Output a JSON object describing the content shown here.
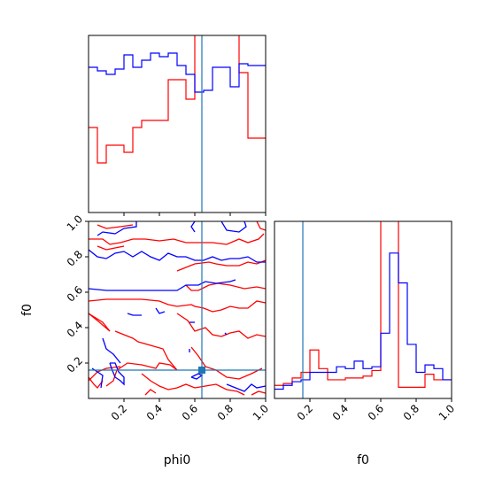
{
  "chart_data": {
    "type": "corner",
    "parameters": [
      "phi0",
      "f0"
    ],
    "xlabels": [
      "phi0",
      "f0"
    ],
    "ylabels": [
      "",
      "f0"
    ],
    "truth": {
      "phi0": 0.64,
      "f0": 0.16
    },
    "ranges": {
      "phi0": [
        0.0,
        1.0
      ],
      "f0": [
        0.0,
        1.0
      ]
    },
    "ticks": {
      "phi0": [
        "0.2",
        "0.4",
        "0.6",
        "0.8",
        "1.0"
      ],
      "f0": [
        "0.2",
        "0.4",
        "0.6",
        "0.8",
        "1.0"
      ],
      "f0_y": [
        "0.2",
        "0.4",
        "0.6",
        "0.8",
        "1.0"
      ]
    },
    "series_colors": {
      "blue": "#0000ff",
      "red": "#ff0000",
      "truth": "#1f77b4"
    },
    "hist_phi0": {
      "bin_edges": [
        0.0,
        0.05,
        0.1,
        0.15,
        0.2,
        0.25,
        0.3,
        0.35,
        0.4,
        0.45,
        0.5,
        0.55,
        0.6,
        0.65,
        0.7,
        0.75,
        0.8,
        0.85,
        0.9,
        0.95,
        1.0
      ],
      "blue": [
        0.82,
        0.8,
        0.78,
        0.81,
        0.89,
        0.82,
        0.86,
        0.9,
        0.88,
        0.9,
        0.83,
        0.78,
        0.68,
        0.69,
        0.82,
        0.82,
        0.71,
        0.84,
        0.83,
        0.83
      ],
      "red": [
        0.48,
        0.28,
        0.38,
        0.38,
        0.34,
        0.48,
        0.52,
        0.52,
        0.52,
        0.75,
        0.75,
        0.64,
        1.1,
        1.1,
        1.1,
        1.1,
        1.1,
        0.79,
        0.42,
        0.42
      ],
      "ymax": 1.0
    },
    "hist_f0": {
      "bin_edges": [
        0.0,
        0.05,
        0.1,
        0.15,
        0.2,
        0.25,
        0.3,
        0.35,
        0.4,
        0.45,
        0.5,
        0.55,
        0.6,
        0.65,
        0.7,
        0.75,
        0.8,
        0.85,
        0.9,
        0.95,
        1.0
      ],
      "blue": [
        0.05,
        0.07,
        0.09,
        0.1,
        0.14,
        0.14,
        0.14,
        0.17,
        0.16,
        0.2,
        0.16,
        0.17,
        0.35,
        0.78,
        0.62,
        0.29,
        0.14,
        0.18,
        0.16,
        0.1
      ],
      "red": [
        0.07,
        0.08,
        0.11,
        0.14,
        0.26,
        0.16,
        0.1,
        0.1,
        0.11,
        0.11,
        0.12,
        0.15,
        1.3,
        1.3,
        0.06,
        0.06,
        0.06,
        0.13,
        0.1,
        0.1
      ],
      "ymax": 0.95
    },
    "contours": {
      "blue": [
        [
          [
            0.27,
            1.0
          ],
          [
            0.27,
            0.97
          ],
          [
            0.2,
            0.96
          ],
          [
            0.15,
            0.93
          ],
          [
            0.08,
            0.94
          ],
          [
            0.05,
            0.92
          ]
        ],
        [
          [
            0.6,
            1.0
          ],
          [
            0.58,
            0.97
          ],
          [
            0.6,
            0.94
          ]
        ],
        [
          [
            0.75,
            1.0
          ],
          [
            0.78,
            0.95
          ],
          [
            0.85,
            0.94
          ],
          [
            0.89,
            0.97
          ],
          [
            0.88,
            1.0
          ]
        ],
        [
          [
            0.0,
            0.84
          ],
          [
            0.05,
            0.8
          ],
          [
            0.1,
            0.79
          ],
          [
            0.15,
            0.82
          ],
          [
            0.2,
            0.83
          ],
          [
            0.25,
            0.8
          ],
          [
            0.3,
            0.83
          ],
          [
            0.35,
            0.8
          ],
          [
            0.4,
            0.78
          ],
          [
            0.45,
            0.82
          ],
          [
            0.5,
            0.8
          ],
          [
            0.55,
            0.8
          ],
          [
            0.6,
            0.78
          ],
          [
            0.65,
            0.78
          ],
          [
            0.7,
            0.8
          ],
          [
            0.75,
            0.78
          ],
          [
            0.8,
            0.79
          ],
          [
            0.85,
            0.79
          ],
          [
            0.9,
            0.8
          ],
          [
            0.95,
            0.77
          ],
          [
            1.0,
            0.77
          ]
        ],
        [
          [
            0.0,
            0.62
          ],
          [
            0.1,
            0.61
          ],
          [
            0.2,
            0.61
          ],
          [
            0.3,
            0.61
          ],
          [
            0.4,
            0.61
          ],
          [
            0.5,
            0.61
          ],
          [
            0.55,
            0.64
          ],
          [
            0.62,
            0.64
          ],
          [
            0.66,
            0.66
          ],
          [
            0.72,
            0.65
          ],
          [
            0.8,
            0.66
          ],
          [
            0.83,
            0.67
          ]
        ],
        [
          [
            0.22,
            0.48
          ],
          [
            0.25,
            0.47
          ],
          [
            0.3,
            0.47
          ]
        ],
        [
          [
            0.38,
            0.51
          ],
          [
            0.4,
            0.48
          ],
          [
            0.43,
            0.49
          ]
        ],
        [
          [
            0.57,
            0.43
          ],
          [
            0.6,
            0.43
          ]
        ],
        [
          [
            0.57,
            0.28
          ],
          [
            0.57,
            0.26
          ]
        ],
        [
          [
            0.77,
            0.37
          ],
          [
            0.78,
            0.36
          ]
        ],
        [
          [
            0.08,
            0.34
          ],
          [
            0.1,
            0.28
          ],
          [
            0.14,
            0.25
          ],
          [
            0.18,
            0.2
          ]
        ],
        [
          [
            0.02,
            0.17
          ],
          [
            0.05,
            0.15
          ],
          [
            0.08,
            0.13
          ],
          [
            0.07,
            0.06
          ]
        ],
        [
          [
            0.12,
            0.2
          ],
          [
            0.15,
            0.2
          ],
          [
            0.17,
            0.15
          ],
          [
            0.2,
            0.12
          ],
          [
            0.2,
            0.08
          ],
          [
            0.18,
            0.1
          ],
          [
            0.15,
            0.12
          ],
          [
            0.13,
            0.17
          ],
          [
            0.12,
            0.2
          ]
        ],
        [
          [
            0.58,
            0.12
          ],
          [
            0.61,
            0.11
          ],
          [
            0.64,
            0.13
          ],
          [
            0.62,
            0.14
          ],
          [
            0.58,
            0.12
          ]
        ],
        [
          [
            0.78,
            0.08
          ],
          [
            0.83,
            0.06
          ],
          [
            0.88,
            0.04
          ],
          [
            0.92,
            0.08
          ],
          [
            0.95,
            0.06
          ],
          [
            1.0,
            0.07
          ]
        ]
      ],
      "red": [
        [
          [
            0.05,
            0.98
          ],
          [
            0.1,
            0.96
          ],
          [
            0.18,
            0.97
          ],
          [
            0.25,
            0.98
          ]
        ],
        [
          [
            0.0,
            0.9
          ],
          [
            0.08,
            0.9
          ],
          [
            0.12,
            0.87
          ],
          [
            0.18,
            0.88
          ],
          [
            0.25,
            0.9
          ],
          [
            0.32,
            0.9
          ],
          [
            0.4,
            0.89
          ],
          [
            0.48,
            0.9
          ],
          [
            0.55,
            0.88
          ],
          [
            0.62,
            0.88
          ],
          [
            0.7,
            0.88
          ],
          [
            0.78,
            0.87
          ],
          [
            0.85,
            0.9
          ],
          [
            0.9,
            0.88
          ],
          [
            0.96,
            0.9
          ],
          [
            0.99,
            0.93
          ]
        ],
        [
          [
            0.05,
            0.86
          ],
          [
            0.1,
            0.84
          ],
          [
            0.15,
            0.85
          ],
          [
            0.2,
            0.86
          ]
        ],
        [
          [
            0.95,
            1.0
          ],
          [
            0.97,
            0.96
          ],
          [
            1.0,
            0.95
          ]
        ],
        [
          [
            0.5,
            0.72
          ],
          [
            0.55,
            0.74
          ],
          [
            0.6,
            0.76
          ],
          [
            0.68,
            0.77
          ],
          [
            0.72,
            0.76
          ],
          [
            0.78,
            0.75
          ],
          [
            0.85,
            0.75
          ],
          [
            0.9,
            0.77
          ],
          [
            0.95,
            0.76
          ],
          [
            1.0,
            0.78
          ]
        ],
        [
          [
            0.55,
            0.64
          ],
          [
            0.58,
            0.61
          ],
          [
            0.62,
            0.61
          ],
          [
            0.68,
            0.64
          ],
          [
            0.73,
            0.65
          ],
          [
            0.8,
            0.64
          ],
          [
            0.88,
            0.62
          ],
          [
            0.95,
            0.63
          ],
          [
            1.0,
            0.62
          ]
        ],
        [
          [
            0.0,
            0.55
          ],
          [
            0.1,
            0.56
          ],
          [
            0.2,
            0.56
          ],
          [
            0.3,
            0.56
          ],
          [
            0.4,
            0.55
          ],
          [
            0.45,
            0.53
          ],
          [
            0.5,
            0.52
          ],
          [
            0.58,
            0.53
          ],
          [
            0.6,
            0.52
          ],
          [
            0.65,
            0.51
          ],
          [
            0.7,
            0.49
          ],
          [
            0.75,
            0.5
          ],
          [
            0.8,
            0.52
          ],
          [
            0.85,
            0.51
          ],
          [
            0.9,
            0.51
          ],
          [
            0.95,
            0.55
          ],
          [
            1.0,
            0.54
          ]
        ],
        [
          [
            0.0,
            0.48
          ],
          [
            0.05,
            0.44
          ],
          [
            0.12,
            0.38
          ],
          [
            0.08,
            0.43
          ],
          [
            0.0,
            0.48
          ]
        ],
        [
          [
            0.15,
            0.38
          ],
          [
            0.2,
            0.36
          ],
          [
            0.25,
            0.34
          ],
          [
            0.28,
            0.32
          ],
          [
            0.35,
            0.3
          ],
          [
            0.42,
            0.28
          ],
          [
            0.45,
            0.22
          ],
          [
            0.5,
            0.16
          ],
          [
            0.46,
            0.19
          ],
          [
            0.4,
            0.2
          ],
          [
            0.38,
            0.17
          ],
          [
            0.3,
            0.19
          ],
          [
            0.22,
            0.2
          ],
          [
            0.16,
            0.16
          ],
          [
            0.14,
            0.1
          ],
          [
            0.1,
            0.07
          ]
        ],
        [
          [
            0.0,
            0.12
          ],
          [
            0.03,
            0.08
          ],
          [
            0.05,
            0.06
          ],
          [
            0.08,
            0.1
          ]
        ],
        [
          [
            0.0,
            0.1
          ],
          [
            0.05,
            0.15
          ],
          [
            0.1,
            0.17
          ],
          [
            0.18,
            0.18
          ]
        ],
        [
          [
            0.5,
            0.48
          ],
          [
            0.56,
            0.44
          ],
          [
            0.6,
            0.38
          ],
          [
            0.66,
            0.4
          ],
          [
            0.7,
            0.36
          ],
          [
            0.75,
            0.35
          ],
          [
            0.8,
            0.37
          ],
          [
            0.85,
            0.38
          ],
          [
            0.9,
            0.34
          ],
          [
            0.95,
            0.36
          ],
          [
            1.0,
            0.35
          ]
        ],
        [
          [
            0.58,
            0.29
          ],
          [
            0.62,
            0.24
          ],
          [
            0.66,
            0.18
          ],
          [
            0.72,
            0.16
          ],
          [
            0.78,
            0.12
          ],
          [
            0.85,
            0.11
          ],
          [
            0.92,
            0.14
          ],
          [
            0.98,
            0.17
          ]
        ],
        [
          [
            0.3,
            0.14
          ],
          [
            0.35,
            0.1
          ],
          [
            0.4,
            0.07
          ],
          [
            0.45,
            0.05
          ],
          [
            0.5,
            0.06
          ],
          [
            0.55,
            0.08
          ],
          [
            0.6,
            0.06
          ],
          [
            0.66,
            0.07
          ],
          [
            0.72,
            0.08
          ],
          [
            0.78,
            0.05
          ],
          [
            0.84,
            0.04
          ],
          [
            0.88,
            0.02
          ]
        ],
        [
          [
            0.32,
            0.02
          ],
          [
            0.35,
            0.05
          ],
          [
            0.38,
            0.03
          ]
        ],
        [
          [
            0.92,
            0.02
          ],
          [
            0.96,
            0.04
          ],
          [
            1.0,
            0.03
          ]
        ]
      ]
    }
  }
}
